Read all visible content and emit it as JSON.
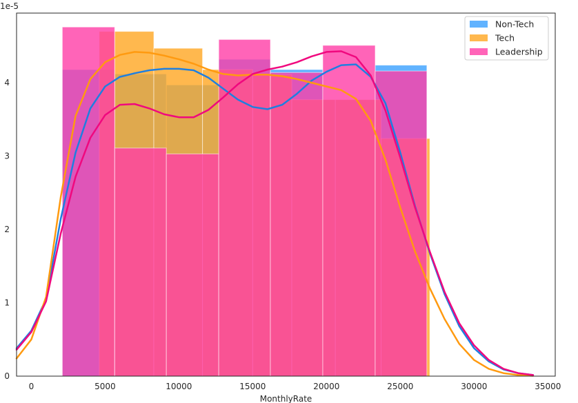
{
  "chart_data": {
    "type": "histogram",
    "xlabel": "MonthlyRate",
    "ylabel": "",
    "y_offset_text": "1e-5",
    "xlim": [
      -1000,
      35500
    ],
    "ylim": [
      0,
      4.95
    ],
    "x_ticks": [
      0,
      5000,
      10000,
      15000,
      20000,
      25000,
      30000,
      35000
    ],
    "y_ticks": [
      0,
      1,
      2,
      3,
      4
    ],
    "grid": false,
    "legend_position": "top-right",
    "series": [
      {
        "name": "Non-Tech",
        "color": "#3aa0ff",
        "kde_color": "#1e7fe0",
        "bins": [
          {
            "x0": 2100,
            "x1": 5650,
            "density": 4.18
          },
          {
            "x0": 5650,
            "x1": 9150,
            "density": 4.12
          },
          {
            "x0": 9150,
            "x1": 12700,
            "density": 3.97
          },
          {
            "x0": 12700,
            "x1": 16200,
            "density": 4.32
          },
          {
            "x0": 16200,
            "x1": 19750,
            "density": 4.18
          },
          {
            "x0": 19750,
            "x1": 23300,
            "density": 3.77
          },
          {
            "x0": 23300,
            "x1": 26800,
            "density": 4.24
          }
        ],
        "kde": [
          [
            -1000,
            0.38
          ],
          [
            0,
            0.62
          ],
          [
            1000,
            1.05
          ],
          [
            2000,
            2.15
          ],
          [
            3000,
            3.05
          ],
          [
            4000,
            3.65
          ],
          [
            5000,
            3.95
          ],
          [
            6000,
            4.08
          ],
          [
            7000,
            4.13
          ],
          [
            8000,
            4.17
          ],
          [
            9000,
            4.19
          ],
          [
            10000,
            4.19
          ],
          [
            11000,
            4.17
          ],
          [
            12000,
            4.07
          ],
          [
            13000,
            3.92
          ],
          [
            14000,
            3.77
          ],
          [
            15000,
            3.67
          ],
          [
            16000,
            3.64
          ],
          [
            17000,
            3.7
          ],
          [
            18000,
            3.85
          ],
          [
            19000,
            4.03
          ],
          [
            20000,
            4.15
          ],
          [
            21000,
            4.24
          ],
          [
            22000,
            4.25
          ],
          [
            23000,
            4.08
          ],
          [
            24000,
            3.72
          ],
          [
            25000,
            3.05
          ],
          [
            26000,
            2.32
          ],
          [
            27000,
            1.68
          ],
          [
            28000,
            1.12
          ],
          [
            29000,
            0.68
          ],
          [
            30000,
            0.38
          ],
          [
            31000,
            0.2
          ],
          [
            32000,
            0.09
          ],
          [
            33000,
            0.04
          ],
          [
            34000,
            0.015
          ]
        ]
      },
      {
        "name": "Tech",
        "color": "#ffa622",
        "kde_color": "#ff9a10",
        "bins": [
          {
            "x0": 4600,
            "x1": 5650,
            "density": 4.7
          },
          {
            "x0": 5650,
            "x1": 8300,
            "density": 4.7
          },
          {
            "x0": 8300,
            "x1": 11600,
            "density": 4.47
          },
          {
            "x0": 11600,
            "x1": 15000,
            "density": 4.18
          },
          {
            "x0": 15000,
            "x1": 17650,
            "density": 4.11
          },
          {
            "x0": 17650,
            "x1": 20600,
            "density": 3.77
          },
          {
            "x0": 20600,
            "x1": 23700,
            "density": 3.77
          },
          {
            "x0": 23700,
            "x1": 27000,
            "density": 3.24
          }
        ],
        "kde": [
          [
            -1000,
            0.24
          ],
          [
            0,
            0.5
          ],
          [
            1000,
            1.08
          ],
          [
            2000,
            2.45
          ],
          [
            3000,
            3.55
          ],
          [
            4000,
            4.05
          ],
          [
            5000,
            4.28
          ],
          [
            6000,
            4.38
          ],
          [
            7000,
            4.42
          ],
          [
            8000,
            4.41
          ],
          [
            9000,
            4.37
          ],
          [
            10000,
            4.32
          ],
          [
            11000,
            4.26
          ],
          [
            12000,
            4.18
          ],
          [
            13000,
            4.12
          ],
          [
            14000,
            4.1
          ],
          [
            15000,
            4.11
          ],
          [
            16000,
            4.11
          ],
          [
            17000,
            4.09
          ],
          [
            18000,
            4.05
          ],
          [
            19000,
            4.0
          ],
          [
            20000,
            3.95
          ],
          [
            21000,
            3.9
          ],
          [
            22000,
            3.78
          ],
          [
            23000,
            3.48
          ],
          [
            24000,
            2.95
          ],
          [
            25000,
            2.3
          ],
          [
            26000,
            1.7
          ],
          [
            27000,
            1.2
          ],
          [
            28000,
            0.78
          ],
          [
            29000,
            0.44
          ],
          [
            30000,
            0.22
          ],
          [
            31000,
            0.1
          ],
          [
            32000,
            0.04
          ],
          [
            33000,
            0.015
          ],
          [
            34000,
            0.005
          ]
        ]
      },
      {
        "name": "Leadership",
        "color": "#ff3da6",
        "kde_color": "#f0087e",
        "bins": [
          {
            "x0": 2100,
            "x1": 5650,
            "density": 4.76
          },
          {
            "x0": 5650,
            "x1": 9150,
            "density": 3.11
          },
          {
            "x0": 9150,
            "x1": 12700,
            "density": 3.03
          },
          {
            "x0": 12700,
            "x1": 16200,
            "density": 4.59
          },
          {
            "x0": 16200,
            "x1": 19750,
            "density": 4.14
          },
          {
            "x0": 19750,
            "x1": 23300,
            "density": 4.51
          },
          {
            "x0": 23300,
            "x1": 26800,
            "density": 4.16
          }
        ],
        "kde": [
          [
            -1000,
            0.36
          ],
          [
            0,
            0.6
          ],
          [
            1000,
            1.02
          ],
          [
            2000,
            1.95
          ],
          [
            3000,
            2.72
          ],
          [
            4000,
            3.25
          ],
          [
            5000,
            3.56
          ],
          [
            6000,
            3.7
          ],
          [
            7000,
            3.71
          ],
          [
            8000,
            3.65
          ],
          [
            9000,
            3.57
          ],
          [
            10000,
            3.53
          ],
          [
            11000,
            3.53
          ],
          [
            12000,
            3.63
          ],
          [
            13000,
            3.8
          ],
          [
            14000,
            3.98
          ],
          [
            15000,
            4.12
          ],
          [
            16000,
            4.18
          ],
          [
            17000,
            4.22
          ],
          [
            18000,
            4.28
          ],
          [
            19000,
            4.36
          ],
          [
            20000,
            4.42
          ],
          [
            21000,
            4.43
          ],
          [
            22000,
            4.35
          ],
          [
            23000,
            4.1
          ],
          [
            24000,
            3.62
          ],
          [
            25000,
            2.98
          ],
          [
            26000,
            2.3
          ],
          [
            27000,
            1.7
          ],
          [
            28000,
            1.15
          ],
          [
            29000,
            0.72
          ],
          [
            30000,
            0.42
          ],
          [
            31000,
            0.22
          ],
          [
            32000,
            0.1
          ],
          [
            33000,
            0.04
          ],
          [
            34000,
            0.015
          ]
        ]
      }
    ]
  }
}
